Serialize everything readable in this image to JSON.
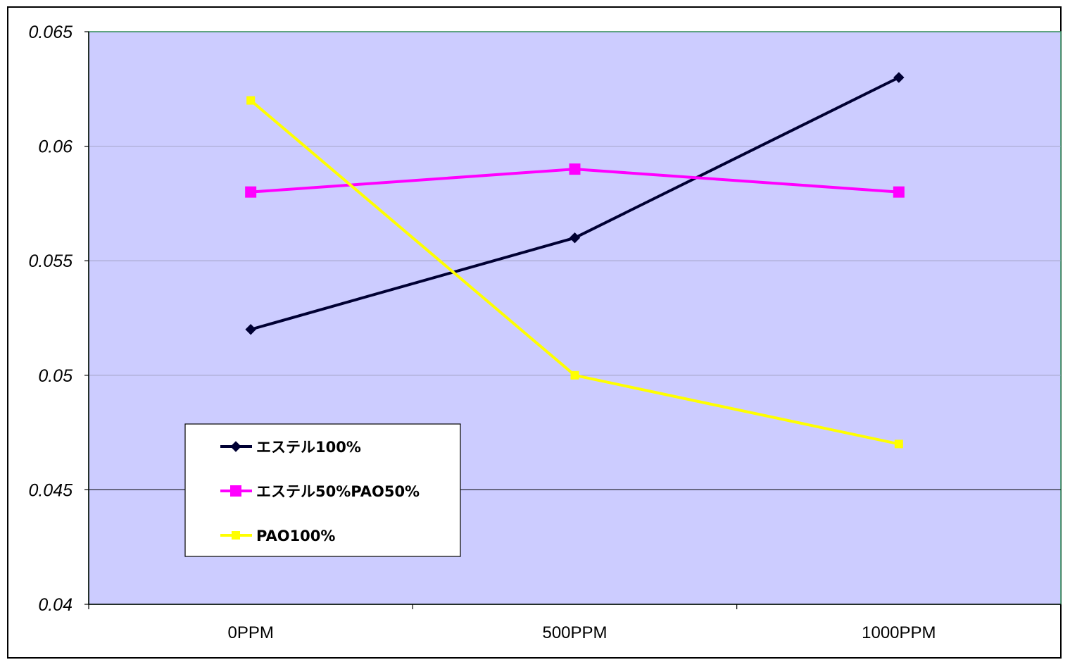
{
  "chart_data": {
    "type": "line",
    "title": "",
    "xlabel": "",
    "ylabel": "",
    "categories": [
      "0PPM",
      "500PPM",
      "1000PPM"
    ],
    "ylim": [
      0.04,
      0.065
    ],
    "yticks": [
      "0.065",
      "0.06",
      "0.055",
      "0.05",
      "0.045",
      "0.04"
    ],
    "ytick_values": [
      0.065,
      0.06,
      0.055,
      0.05,
      0.045,
      0.04
    ],
    "grid": true,
    "plot_background": "#ccccff",
    "legend_position": "lower-left",
    "series": [
      {
        "name": "エステル100%",
        "values": [
          0.052,
          0.056,
          0.063
        ],
        "color": "#000033",
        "marker": "diamond"
      },
      {
        "name": "エステル50%PAO50%",
        "values": [
          0.058,
          0.059,
          0.058
        ],
        "color": "#ff00ff",
        "marker": "square"
      },
      {
        "name": "PAO100%",
        "values": [
          0.062,
          0.05,
          0.047
        ],
        "color": "#ffff00",
        "marker": "square"
      }
    ]
  }
}
